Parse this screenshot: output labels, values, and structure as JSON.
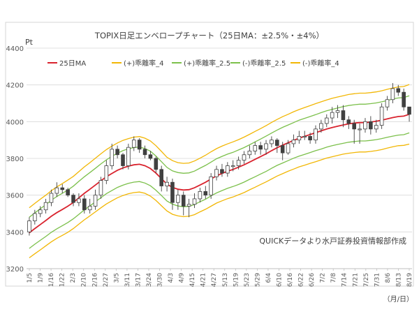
{
  "chart_data": {
    "type": "candlestick",
    "title": "TOPIX日足エンベロープチャート（25日MA：±2.5%・±4%）",
    "y_unit": "Pt",
    "x_unit": "（月/日）",
    "source_note": "QUICKデータより水戸証券投資情報部作成",
    "ylim": [
      3200,
      4400
    ],
    "y_ticks": [
      3200,
      3400,
      3600,
      3800,
      4000,
      4200,
      4400
    ],
    "grid": true,
    "legend_position": "top",
    "x_tick_labels": [
      "1/5",
      "1/9",
      "1/16",
      "1/22",
      "2/3",
      "2/10",
      "2/16",
      "2/27",
      "3/5",
      "3/11",
      "3/17",
      "3/24",
      "3/30",
      "4/3",
      "4/9",
      "4/15",
      "4/21",
      "4/27",
      "5/13",
      "5/19",
      "5/23",
      "5/29",
      "6/4",
      "6/10",
      "6/16",
      "6/22",
      "6/26",
      "7/2",
      "7/8",
      "7/14",
      "7/21",
      "7/25",
      "7/31",
      "8/6",
      "8/13",
      "8/19"
    ],
    "series": [
      {
        "name": "25日MA",
        "color": "#d9232e",
        "values": [
          3395,
          3418,
          3440,
          3462,
          3485,
          3505,
          3522,
          3540,
          3560,
          3585,
          3610,
          3632,
          3655,
          3678,
          3700,
          3718,
          3735,
          3748,
          3758,
          3765,
          3768,
          3760,
          3745,
          3720,
          3690,
          3660,
          3642,
          3632,
          3628,
          3630,
          3640,
          3655,
          3670,
          3688,
          3705,
          3718,
          3730,
          3740,
          3752,
          3765,
          3780,
          3795,
          3810,
          3825,
          3842,
          3858,
          3872,
          3885,
          3898,
          3910,
          3920,
          3930,
          3940,
          3950,
          3960,
          3968,
          3975,
          3982,
          3988,
          3992,
          3995,
          3995,
          3998,
          4002,
          4008,
          4015,
          4022,
          4028,
          4030,
          4040
        ]
      },
      {
        "name": "(+)乖離率_4",
        "color": "#f2b705",
        "values": [
          3531,
          3555,
          3578,
          3600,
          3624,
          3645,
          3663,
          3682,
          3702,
          3728,
          3754,
          3777,
          3801,
          3825,
          3848,
          3867,
          3884,
          3898,
          3908,
          3916,
          3919,
          3910,
          3895,
          3869,
          3838,
          3806,
          3788,
          3777,
          3773,
          3775,
          3786,
          3801,
          3817,
          3836,
          3853,
          3867,
          3879,
          3890,
          3902,
          3916,
          3931,
          3947,
          3962,
          3978,
          3996,
          4012,
          4027,
          4040,
          4054,
          4066,
          4077,
          4087,
          4098,
          4108,
          4118,
          4127,
          4134,
          4141,
          4148,
          4152,
          4155,
          4155,
          4158,
          4162,
          4168,
          4176,
          4183,
          4189,
          4191,
          4202
        ]
      },
      {
        "name": "(+)乖離率_2.5",
        "color": "#7cc04b",
        "values": [
          3480,
          3503,
          3526,
          3548,
          3572,
          3593,
          3610,
          3628,
          3649,
          3675,
          3700,
          3723,
          3746,
          3770,
          3792,
          3811,
          3828,
          3842,
          3852,
          3859,
          3862,
          3854,
          3839,
          3813,
          3782,
          3751,
          3732,
          3723,
          3719,
          3721,
          3731,
          3747,
          3762,
          3780,
          3798,
          3811,
          3823,
          3833,
          3846,
          3859,
          3874,
          3890,
          3905,
          3921,
          3938,
          3954,
          3969,
          3982,
          3995,
          4008,
          4018,
          4028,
          4038,
          4049,
          4059,
          4067,
          4074,
          4082,
          4088,
          4092,
          4095,
          4095,
          4098,
          4102,
          4108,
          4115,
          4123,
          4129,
          4131,
          4141
        ]
      },
      {
        "name": "(-)乖離率_2.5",
        "color": "#7cc04b",
        "values": [
          3310,
          3333,
          3354,
          3375,
          3398,
          3417,
          3434,
          3451,
          3471,
          3495,
          3520,
          3541,
          3564,
          3586,
          3608,
          3625,
          3642,
          3654,
          3664,
          3671,
          3674,
          3666,
          3651,
          3627,
          3598,
          3568,
          3551,
          3541,
          3537,
          3539,
          3549,
          3564,
          3578,
          3596,
          3612,
          3625,
          3637,
          3647,
          3658,
          3671,
          3686,
          3700,
          3715,
          3729,
          3746,
          3762,
          3775,
          3788,
          3801,
          3812,
          3822,
          3832,
          3842,
          3851,
          3861,
          3869,
          3876,
          3882,
          3888,
          3892,
          3895,
          3895,
          3898,
          3902,
          3908,
          3915,
          3921,
          3927,
          3929,
          3939
        ]
      },
      {
        "name": "(-)乖離率_4",
        "color": "#f2b705",
        "values": [
          3259,
          3281,
          3302,
          3324,
          3346,
          3365,
          3381,
          3398,
          3418,
          3442,
          3466,
          3487,
          3509,
          3531,
          3552,
          3569,
          3586,
          3598,
          3608,
          3614,
          3617,
          3610,
          3595,
          3571,
          3542,
          3514,
          3496,
          3487,
          3483,
          3485,
          3494,
          3509,
          3523,
          3540,
          3557,
          3569,
          3581,
          3590,
          3602,
          3614,
          3629,
          3643,
          3658,
          3672,
          3688,
          3704,
          3717,
          3730,
          3742,
          3754,
          3763,
          3773,
          3782,
          3792,
          3802,
          3809,
          3816,
          3823,
          3828,
          3832,
          3835,
          3835,
          3838,
          3842,
          3848,
          3856,
          3863,
          3869,
          3871,
          3878
        ]
      }
    ],
    "candles": {
      "open": [
        3400,
        3460,
        3500,
        3520,
        3560,
        3610,
        3640,
        3630,
        3600,
        3560,
        3580,
        3520,
        3540,
        3600,
        3680,
        3760,
        3850,
        3820,
        3760,
        3860,
        3900,
        3850,
        3820,
        3800,
        3740,
        3650,
        3670,
        3560,
        3600,
        3540,
        3550,
        3580,
        3620,
        3600,
        3700,
        3740,
        3720,
        3760,
        3760,
        3790,
        3820,
        3840,
        3870,
        3850,
        3880,
        3900,
        3870,
        3830,
        3880,
        3900,
        3920,
        3920,
        3900,
        3960,
        3990,
        4020,
        4050,
        4060,
        4010,
        3990,
        3960,
        3960,
        4000,
        3960,
        3980,
        4080,
        4120,
        4180,
        4160,
        4080
      ],
      "close": [
        3460,
        3500,
        3520,
        3560,
        3610,
        3640,
        3630,
        3600,
        3560,
        3580,
        3520,
        3540,
        3600,
        3680,
        3760,
        3850,
        3820,
        3760,
        3860,
        3900,
        3850,
        3820,
        3800,
        3740,
        3650,
        3670,
        3560,
        3600,
        3540,
        3550,
        3580,
        3620,
        3600,
        3700,
        3740,
        3720,
        3760,
        3760,
        3790,
        3820,
        3840,
        3870,
        3850,
        3880,
        3900,
        3870,
        3830,
        3880,
        3900,
        3920,
        3920,
        3900,
        3960,
        3990,
        4020,
        4050,
        4060,
        4010,
        3990,
        3960,
        3960,
        4000,
        3960,
        3980,
        4080,
        4120,
        4180,
        4160,
        4080,
        4040
      ],
      "high": [
        3480,
        3520,
        3540,
        3580,
        3630,
        3670,
        3660,
        3640,
        3610,
        3610,
        3600,
        3580,
        3630,
        3700,
        3790,
        3880,
        3870,
        3830,
        3880,
        3920,
        3910,
        3870,
        3840,
        3810,
        3760,
        3700,
        3690,
        3630,
        3620,
        3580,
        3610,
        3640,
        3650,
        3720,
        3760,
        3770,
        3780,
        3790,
        3810,
        3840,
        3870,
        3890,
        3890,
        3900,
        3920,
        3910,
        3890,
        3900,
        3930,
        3950,
        3950,
        3940,
        3980,
        4010,
        4040,
        4080,
        4090,
        4090,
        4030,
        4010,
        3990,
        4020,
        4030,
        4010,
        4100,
        4140,
        4210,
        4200,
        4180,
        4080
      ],
      "low": [
        3380,
        3440,
        3480,
        3500,
        3540,
        3590,
        3610,
        3590,
        3540,
        3540,
        3500,
        3500,
        3520,
        3580,
        3660,
        3740,
        3800,
        3740,
        3740,
        3840,
        3830,
        3800,
        3790,
        3720,
        3620,
        3620,
        3520,
        3520,
        3490,
        3480,
        3530,
        3560,
        3580,
        3580,
        3680,
        3700,
        3700,
        3730,
        3740,
        3770,
        3800,
        3820,
        3820,
        3820,
        3860,
        3830,
        3790,
        3820,
        3860,
        3880,
        3900,
        3880,
        3880,
        3940,
        3970,
        3990,
        4020,
        3970,
        3960,
        3880,
        3880,
        3940,
        3930,
        3940,
        3960,
        4060,
        4100,
        4140,
        4060,
        4000
      ]
    }
  },
  "legend": [
    {
      "label": "25日MA",
      "color": "#d9232e"
    },
    {
      "label": "(+)乖離率_4",
      "color": "#f2b705"
    },
    {
      "label": "(+)乖離率_2.5",
      "color": "#7cc04b"
    },
    {
      "label": "(-)乖離率_2.5",
      "color": "#7cc04b"
    },
    {
      "label": "(-)乖離率_4",
      "color": "#f2b705"
    }
  ],
  "colors": {
    "grid": "#d9d9d9",
    "axis": "#595959",
    "candle": "#404040",
    "frame": "#d0d0d0"
  }
}
